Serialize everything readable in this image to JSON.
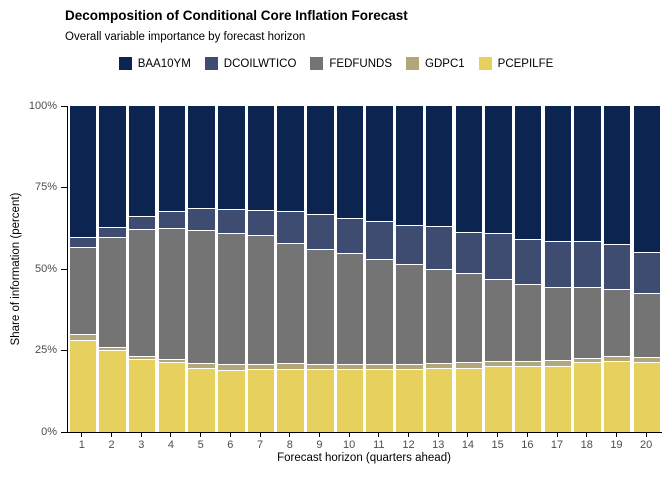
{
  "title": "Decomposition of Conditional Core Inflation Forecast",
  "subtitle": "Overall variable importance by forecast horizon",
  "legend": {
    "position": "top-center",
    "items": [
      {
        "label": "BAA10YM",
        "color": "#0c2450"
      },
      {
        "label": "DCOILWTICO",
        "color": "#3d4c70"
      },
      {
        "label": "FEDFUNDS",
        "color": "#747474"
      },
      {
        "label": "GDPC1",
        "color": "#b2a77a"
      },
      {
        "label": "PCEPILFE",
        "color": "#e7d05e"
      }
    ]
  },
  "chart_data": {
    "type": "bar",
    "stacked": true,
    "title": "Decomposition of Conditional Core Inflation Forecast",
    "subtitle": "Overall variable importance by forecast horizon",
    "xlabel": "Forecast horizon (quarters ahead)",
    "ylabel": "Share of information (percent)",
    "categories": [
      "1",
      "2",
      "3",
      "4",
      "5",
      "6",
      "7",
      "8",
      "9",
      "10",
      "11",
      "12",
      "13",
      "14",
      "15",
      "16",
      "17",
      "18",
      "19",
      "20"
    ],
    "y_ticks": [
      "0%",
      "25%",
      "50%",
      "75%",
      "100%"
    ],
    "y_tick_values": [
      0,
      25,
      50,
      75,
      100
    ],
    "ylim": [
      0,
      100
    ],
    "grid": false,
    "legend_order_displayed": [
      "BAA10YM",
      "DCOILWTICO",
      "FEDFUNDS",
      "GDPC1",
      "PCEPILFE"
    ],
    "stack_order_bottom_to_top": [
      "PCEPILFE",
      "GDPC1",
      "FEDFUNDS",
      "DCOILWTICO",
      "BAA10YM"
    ],
    "series": [
      {
        "name": "PCEPILFE",
        "color": "#e7d05e",
        "values": [
          28.1,
          25.3,
          22.5,
          21.5,
          19.7,
          19.1,
          19.2,
          19.2,
          19.2,
          19.2,
          19.2,
          19.2,
          19.5,
          19.7,
          20.1,
          20.1,
          20.1,
          21.5,
          21.8,
          21.5
        ]
      },
      {
        "name": "GDPC1",
        "color": "#b2a77a",
        "values": [
          2.1,
          0.9,
          0.8,
          0.9,
          1.4,
          1.9,
          1.8,
          1.9,
          1.8,
          1.8,
          1.8,
          1.6,
          1.6,
          1.8,
          1.6,
          1.6,
          1.9,
          1.3,
          1.4,
          1.5
        ]
      },
      {
        "name": "FEDFUNDS",
        "color": "#747474",
        "values": [
          26.5,
          33.6,
          38.9,
          40.2,
          41.0,
          39.9,
          39.3,
          36.9,
          35.3,
          33.9,
          32.2,
          30.6,
          29.0,
          27.3,
          25.3,
          23.8,
          22.5,
          21.7,
          20.8,
          19.6
        ]
      },
      {
        "name": "DCOILWTICO",
        "color": "#3d4c70",
        "values": [
          3.1,
          3.1,
          4.1,
          5.1,
          6.7,
          7.6,
          7.7,
          9.8,
          10.7,
          10.9,
          11.5,
          12.0,
          13.0,
          12.5,
          14.0,
          13.8,
          14.1,
          14.1,
          13.6,
          12.6
        ]
      },
      {
        "name": "BAA10YM",
        "color": "#0c2450",
        "values": [
          40.2,
          37.1,
          33.7,
          32.3,
          31.2,
          31.5,
          32.0,
          32.2,
          33.0,
          34.2,
          35.3,
          36.6,
          36.9,
          38.7,
          39.0,
          40.7,
          41.4,
          41.4,
          42.4,
          44.8
        ]
      }
    ]
  }
}
